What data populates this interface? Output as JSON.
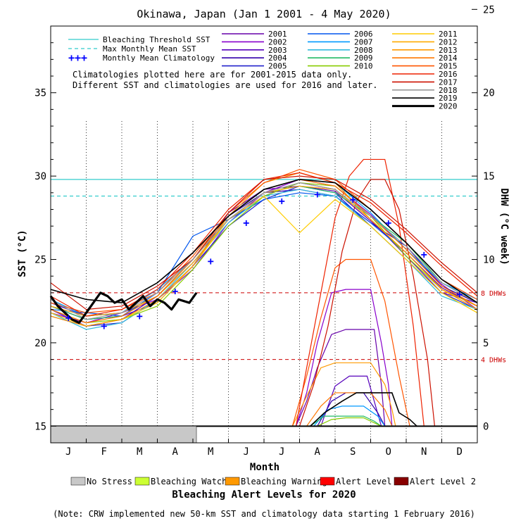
{
  "chart_data": {
    "type": "line",
    "title": "Okinawa, Japan      (Jan 1 2001 - 4 May 2020)",
    "xlabel": "Month",
    "ylabel": "SST (°C)",
    "y2label": "DHW (°C week)",
    "x_ticks": [
      "J",
      "F",
      "M",
      "A",
      "M",
      "J",
      "J",
      "A",
      "S",
      "O",
      "N",
      "D"
    ],
    "ylim": [
      14.0,
      39.0
    ],
    "y_ticks": [
      15,
      20,
      25,
      30,
      35
    ],
    "y2lim": [
      -1,
      24
    ],
    "y2_ticks": [
      0,
      5,
      10,
      15,
      20,
      25
    ],
    "dhw_reference_lines": [
      {
        "value": 4,
        "label": "4 DHWs",
        "color": "#cc0000"
      },
      {
        "value": 8,
        "label": "8 DHWs",
        "color": "#cc0000"
      }
    ],
    "threshold_lines": [
      {
        "name": "Bleaching Threshold SST",
        "value": 29.8,
        "color": "#33cccc",
        "style": "solid"
      },
      {
        "name": "Max Monthly Mean SST",
        "value": 28.8,
        "color": "#33cccc",
        "style": "dashed"
      }
    ],
    "climatology": {
      "name": "Monthly Mean Climatology",
      "color": "#0000ff",
      "x": [
        0.5,
        1.5,
        2.5,
        3.5,
        4.5,
        5.5,
        6.5,
        7.5,
        8.5,
        9.5,
        10.5,
        11.5
      ],
      "values": [
        21.5,
        21.0,
        21.6,
        23.1,
        24.9,
        27.2,
        28.5,
        28.9,
        28.6,
        27.2,
        25.3,
        22.9
      ]
    },
    "legend_text": {
      "bleaching_threshold": "Bleaching Threshold SST",
      "max_monthly_mean": "Max Monthly Mean SST",
      "monthly_mean_climatology": "Monthly Mean Climatology",
      "note1": "Climatologies plotted here are for 2001-2015 data only.",
      "note2": "Different SST and climatologies are used for 2016 and later."
    },
    "series": [
      {
        "name": "2001",
        "color": "#6600aa",
        "sst_x": [
          0,
          1,
          2,
          3,
          4,
          5,
          6,
          7,
          8,
          9,
          10,
          11,
          12
        ],
        "sst": [
          22.2,
          21.4,
          21.6,
          22.4,
          24.6,
          27.8,
          29.2,
          29.4,
          29.1,
          27.3,
          25.4,
          23.3,
          22.2
        ],
        "dhw_x": [
          6.9,
          7.2,
          7.5,
          7.9,
          8.3,
          8.6,
          9.1,
          9.3,
          9.4
        ],
        "dhw": [
          0,
          1.5,
          3.5,
          5.5,
          5.8,
          5.8,
          5.8,
          2.5,
          0
        ]
      },
      {
        "name": "2002",
        "color": "#8800cc",
        "sst_x": [
          0,
          1,
          2,
          3,
          4,
          5,
          6,
          7,
          8,
          9,
          10,
          11,
          12
        ],
        "sst": [
          21.8,
          21.2,
          21.8,
          22.6,
          24.4,
          27.2,
          29.0,
          29.8,
          29.4,
          27.7,
          25.6,
          23.5,
          22.0
        ],
        "dhw_x": [
          6.9,
          7.2,
          7.5,
          7.9,
          8.3,
          8.6,
          9.0,
          9.3,
          9.5,
          9.6
        ],
        "dhw": [
          0,
          2.0,
          5.0,
          8.0,
          8.2,
          8.2,
          8.2,
          5.0,
          2.5,
          0
        ]
      },
      {
        "name": "2003",
        "color": "#5500bb",
        "sst_x": [
          0,
          1,
          2,
          3,
          4,
          5,
          6,
          7,
          8,
          9,
          10,
          11,
          12
        ],
        "sst": [
          22.0,
          21.0,
          21.4,
          22.8,
          24.8,
          27.4,
          28.8,
          29.6,
          29.2,
          27.4,
          25.2,
          23.0,
          22.4
        ],
        "dhw_x": [
          7.6,
          8.0,
          8.4,
          8.9,
          9.1,
          9.3
        ],
        "dhw": [
          0,
          2.4,
          3.0,
          3.0,
          1.5,
          0
        ]
      },
      {
        "name": "2004",
        "color": "#3300aa",
        "sst_x": [
          0,
          1,
          2,
          3,
          4,
          5,
          6,
          7,
          8,
          9,
          10,
          11,
          12
        ],
        "sst": [
          22.4,
          21.6,
          21.8,
          22.8,
          25.0,
          27.6,
          29.0,
          29.2,
          28.8,
          27.2,
          25.8,
          23.4,
          22.4
        ],
        "dhw_x": [
          7.5,
          7.9,
          8.3,
          8.8,
          9.2,
          9.4
        ],
        "dhw": [
          0,
          1.5,
          2.0,
          2.0,
          0.8,
          0
        ]
      },
      {
        "name": "2005",
        "color": "#2222cc",
        "sst_x": [
          0,
          1,
          2,
          3,
          4,
          5,
          6,
          7,
          8,
          9,
          10,
          11,
          12
        ],
        "sst": [
          21.6,
          21.0,
          21.2,
          22.6,
          24.6,
          27.0,
          28.6,
          29.4,
          29.0,
          27.0,
          25.0,
          23.0,
          22.0
        ],
        "dhw_x": [],
        "dhw": []
      },
      {
        "name": "2006",
        "color": "#0055ee",
        "sst_x": [
          0,
          1,
          2,
          3,
          4,
          5,
          6,
          7,
          8,
          9,
          10,
          11,
          12
        ],
        "sst": [
          22.0,
          21.8,
          21.6,
          23.0,
          26.4,
          27.4,
          28.6,
          29.0,
          28.8,
          27.2,
          25.4,
          23.2,
          22.2
        ],
        "dhw_x": [],
        "dhw": []
      },
      {
        "name": "2007",
        "color": "#0099ff",
        "sst_x": [
          0,
          1,
          2,
          3,
          4,
          5,
          6,
          7,
          8,
          9,
          10,
          11,
          12
        ],
        "sst": [
          22.6,
          21.6,
          21.8,
          23.2,
          25.0,
          27.6,
          29.2,
          29.8,
          29.6,
          27.8,
          25.6,
          23.6,
          22.6
        ],
        "dhw_x": [
          7.4,
          7.8,
          8.2,
          8.8,
          9.2,
          9.4
        ],
        "dhw": [
          0,
          1.0,
          1.2,
          1.2,
          0.6,
          0
        ]
      },
      {
        "name": "2008",
        "color": "#33bbdd",
        "sst_x": [
          0,
          1,
          2,
          3,
          4,
          5,
          6,
          7,
          8,
          9,
          10,
          11,
          12
        ],
        "sst": [
          21.8,
          20.8,
          21.2,
          22.6,
          24.8,
          27.2,
          28.8,
          29.2,
          28.8,
          27.0,
          25.0,
          22.8,
          22.0
        ],
        "dhw_x": [],
        "dhw": []
      },
      {
        "name": "2009",
        "color": "#22bb66",
        "sst_x": [
          0,
          1,
          2,
          3,
          4,
          5,
          6,
          7,
          8,
          9,
          10,
          11,
          12
        ],
        "sst": [
          22.2,
          21.4,
          21.6,
          22.8,
          25.0,
          27.4,
          29.0,
          29.4,
          29.0,
          27.6,
          26.0,
          23.6,
          22.4
        ],
        "dhw_x": [
          7.3,
          7.7,
          8.1,
          8.8,
          9.1,
          9.3
        ],
        "dhw": [
          0,
          0.6,
          0.6,
          0.6,
          0.3,
          0
        ]
      },
      {
        "name": "2010",
        "color": "#88cc00",
        "sst_x": [
          0,
          1,
          2,
          3,
          4,
          5,
          6,
          7,
          8,
          9,
          10,
          11,
          12
        ],
        "sst": [
          22.0,
          21.2,
          21.4,
          22.2,
          24.4,
          27.0,
          28.8,
          29.6,
          29.4,
          27.6,
          25.2,
          23.2,
          22.2
        ],
        "dhw_x": [
          7.5,
          7.9,
          8.3,
          8.8,
          9.1,
          9.3
        ],
        "dhw": [
          0,
          0.4,
          0.5,
          0.5,
          0.2,
          0
        ]
      },
      {
        "name": "2011",
        "color": "#ffcc00",
        "sst_x": [
          0,
          1,
          2,
          3,
          4,
          5,
          6,
          7,
          8,
          9,
          10,
          11,
          12
        ],
        "sst": [
          21.8,
          21.0,
          21.4,
          22.4,
          24.6,
          27.4,
          28.8,
          26.6,
          28.6,
          27.0,
          25.0,
          23.0,
          21.8
        ],
        "dhw_x": [],
        "dhw": []
      },
      {
        "name": "2012",
        "color": "#ffaa00",
        "sst_x": [
          0,
          1,
          2,
          3,
          4,
          5,
          6,
          7,
          8,
          9,
          10,
          11,
          12
        ],
        "sst": [
          22.2,
          21.6,
          21.8,
          22.8,
          24.8,
          27.4,
          29.0,
          29.4,
          29.2,
          27.4,
          25.4,
          23.2,
          22.2
        ],
        "dhw_x": [],
        "dhw": []
      },
      {
        "name": "2013",
        "color": "#ff9900",
        "sst_x": [
          0,
          1,
          2,
          3,
          4,
          5,
          6,
          7,
          8,
          9,
          10,
          11,
          12
        ],
        "sst": [
          21.6,
          21.0,
          21.4,
          22.6,
          24.6,
          27.6,
          29.6,
          30.2,
          29.6,
          27.4,
          25.4,
          23.2,
          22.0
        ],
        "dhw_x": [
          6.8,
          7.2,
          7.6,
          8.0,
          8.4,
          9.0,
          9.4,
          9.6,
          9.7
        ],
        "dhw": [
          0,
          1.8,
          3.5,
          3.8,
          3.8,
          3.8,
          2.5,
          1.0,
          0
        ]
      },
      {
        "name": "2014",
        "color": "#ff7700",
        "sst_x": [
          0,
          1,
          2,
          3,
          4,
          5,
          6,
          7,
          8,
          9,
          10,
          11,
          12
        ],
        "sst": [
          22.0,
          21.2,
          21.6,
          22.8,
          25.0,
          27.6,
          29.2,
          29.8,
          29.4,
          27.6,
          25.6,
          23.4,
          22.2
        ],
        "dhw_x": [
          7.2,
          7.6,
          8.0,
          8.4,
          9.0,
          9.4,
          9.6
        ],
        "dhw": [
          0,
          1.2,
          2.0,
          2.0,
          2.0,
          1.0,
          0
        ]
      },
      {
        "name": "2015",
        "color": "#ff5500",
        "sst_x": [
          0,
          1,
          2,
          3,
          4,
          5,
          6,
          7,
          8,
          9,
          10,
          11,
          12
        ],
        "sst": [
          22.4,
          21.8,
          22.0,
          23.0,
          25.2,
          27.8,
          29.6,
          30.4,
          29.8,
          28.0,
          26.0,
          23.8,
          22.6
        ],
        "dhw_x": [
          6.8,
          7.2,
          7.6,
          8.0,
          8.3,
          8.8,
          9.0,
          9.4,
          9.8,
          10.1
        ],
        "dhw": [
          0,
          3.0,
          6.5,
          9.5,
          10.0,
          10.0,
          10.0,
          7.5,
          3.0,
          0
        ]
      },
      {
        "name": "2016",
        "color": "#ee2200",
        "sst_x": [
          0,
          1,
          2,
          3,
          4,
          5,
          6,
          7,
          8,
          9,
          10,
          11,
          12
        ],
        "sst": [
          22.8,
          21.6,
          22.0,
          23.2,
          25.4,
          28.0,
          29.8,
          30.2,
          29.6,
          28.4,
          26.6,
          24.6,
          22.8
        ],
        "dhw_x": [
          6.9,
          7.2,
          7.6,
          8.0,
          8.4,
          8.8,
          9.4,
          9.8,
          10.2,
          10.5
        ],
        "dhw": [
          0,
          3.5,
          8.0,
          12.5,
          15.0,
          16.0,
          16.0,
          12.0,
          6.0,
          0
        ]
      },
      {
        "name": "2017",
        "color": "#cc1100",
        "sst_x": [
          0,
          1,
          2,
          3,
          4,
          5,
          6,
          7,
          8,
          9,
          10,
          11,
          12
        ],
        "sst": [
          23.6,
          22.0,
          22.2,
          23.4,
          25.0,
          27.8,
          29.8,
          30.0,
          29.8,
          28.6,
          26.8,
          24.8,
          23.0
        ],
        "dhw_x": [
          7.0,
          7.4,
          7.8,
          8.2,
          8.6,
          9.0,
          9.4,
          9.8,
          10.2,
          10.6,
          10.8
        ],
        "dhw": [
          0,
          2.5,
          6.0,
          10.5,
          13.5,
          14.8,
          14.8,
          13.0,
          9.0,
          4.0,
          0
        ]
      },
      {
        "name": "2018",
        "color": "#999999",
        "sst_x": [
          0,
          1,
          2,
          3,
          4,
          5,
          6,
          7,
          8,
          9,
          10,
          11,
          12
        ],
        "sst": [
          22.6,
          21.4,
          21.8,
          23.0,
          25.0,
          27.4,
          29.0,
          29.6,
          29.2,
          27.6,
          25.8,
          23.6,
          22.4
        ],
        "dhw_x": [],
        "dhw": []
      },
      {
        "name": "2019",
        "color": "#000000",
        "sst_x": [
          0,
          1,
          2,
          3,
          4,
          5,
          6,
          7,
          8,
          9,
          10,
          11,
          12
        ],
        "sst": [
          23.2,
          22.6,
          22.4,
          23.6,
          25.4,
          27.6,
          29.2,
          29.8,
          29.6,
          28.0,
          26.0,
          23.8,
          22.4
        ],
        "dhw_x": [
          7.3,
          7.7,
          8.2,
          8.6,
          9.0,
          9.4,
          9.6,
          9.8,
          10.1,
          10.3
        ],
        "dhw": [
          0,
          0.8,
          1.5,
          2.0,
          2.0,
          2.0,
          2.0,
          0.8,
          0.4,
          0
        ]
      },
      {
        "name": "2020",
        "color": "#000000",
        "sst_x": [
          0,
          0.2,
          0.4,
          0.6,
          0.8,
          1.0,
          1.2,
          1.4,
          1.6,
          1.8,
          2.0,
          2.2,
          2.4,
          2.6,
          2.8,
          3.0,
          3.2,
          3.4,
          3.6,
          3.9,
          4.1
        ],
        "sst": [
          22.8,
          22.2,
          21.8,
          21.4,
          21.2,
          21.8,
          22.4,
          23.0,
          22.8,
          22.4,
          22.6,
          22.0,
          22.4,
          22.8,
          22.2,
          22.6,
          22.4,
          22.0,
          22.6,
          22.4,
          23.0
        ],
        "dhw_x": [
          0,
          4.1
        ],
        "dhw": [
          0,
          0
        ]
      }
    ],
    "alert_2020": {
      "no_stress_until_x": 4.1
    },
    "alert_legend": {
      "title": "Bleaching Alert Levels for 2020",
      "items": [
        {
          "label": "No Stress",
          "color": "#c8c8c8"
        },
        {
          "label": "Bleaching Watch",
          "color": "#ccff33"
        },
        {
          "label": "Bleaching Warning",
          "color": "#ff9900"
        },
        {
          "label": "Alert Level 1",
          "color": "#ff0000"
        },
        {
          "label": "Alert Level 2",
          "color": "#880000"
        }
      ]
    },
    "footnote": "(Note: CRW implemented new 50-km SST and climatology data starting 1 February 2016)",
    "grid": "dotted vertical lines at month boundaries Feb–Nov",
    "legend_position": "top"
  }
}
